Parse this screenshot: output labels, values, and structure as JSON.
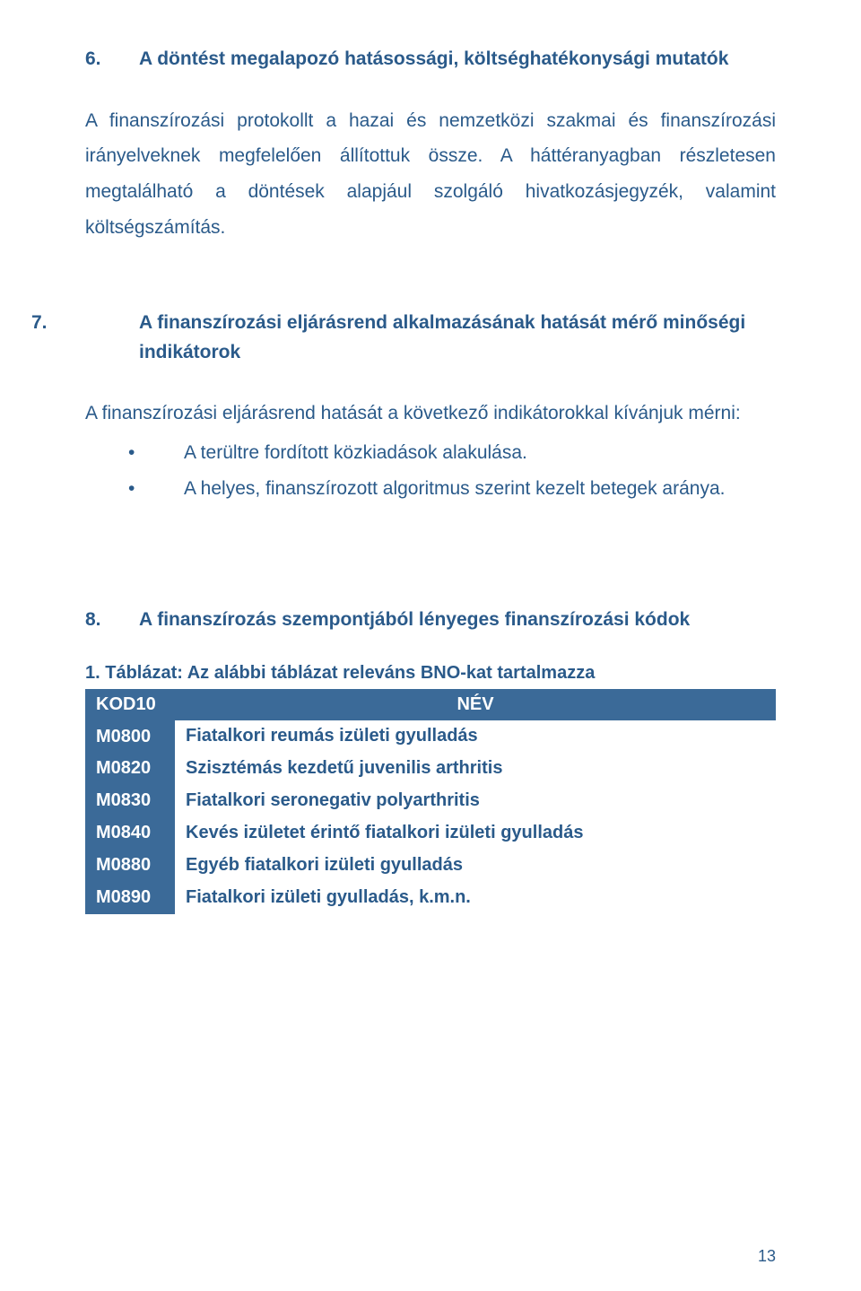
{
  "section6": {
    "number": "6.",
    "title": "A döntést megalapozó hatásossági, költséghatékonysági mutatók",
    "para1": "A finanszírozási protokollt a hazai és nemzetközi szakmai és finanszírozási irányelveknek megfelelően állítottuk össze. A háttéranyagban részletesen megtalálható a döntések alapjául szolgáló hivatkozásjegyzék, valamint költségszámítás."
  },
  "section7": {
    "number": "7.",
    "title": "A finanszírozási eljárásrend alkalmazásának hatását mérő minőségi indikátorok",
    "intro": "A finanszírozási eljárásrend hatását a következő indikátorokkal kívánjuk mérni:",
    "bullets": [
      "A terültre fordított közkiadások alakulása.",
      "A helyes, finanszírozott algoritmus szerint kezelt betegek aránya."
    ]
  },
  "section8": {
    "number": "8.",
    "title": "A finanszírozás szempontjából lényeges finanszírozási kódok",
    "table_caption": "1. Táblázat: Az alábbi táblázat releváns BNO-kat tartalmazza",
    "columns": [
      "KOD10",
      "NÉV"
    ],
    "rows": [
      [
        "M0800",
        "Fiatalkori reumás izületi gyulladás"
      ],
      [
        "M0820",
        "Szisztémás kezdetű juvenilis arthritis"
      ],
      [
        "M0830",
        "Fiatalkori seronegativ polyarthritis"
      ],
      [
        "M0840",
        "Kevés izületet érintő fiatalkori izületi gyulladás"
      ],
      [
        "M0880",
        "Egyéb fiatalkori izületi gyulladás"
      ],
      [
        "M0890",
        "Fiatalkori izületi gyulladás, k.m.n."
      ]
    ]
  },
  "page_number": "13",
  "colors": {
    "text": "#2a5a8a",
    "table_header_bg": "#3b6a98",
    "table_header_fg": "#ffffff",
    "background": "#ffffff"
  }
}
